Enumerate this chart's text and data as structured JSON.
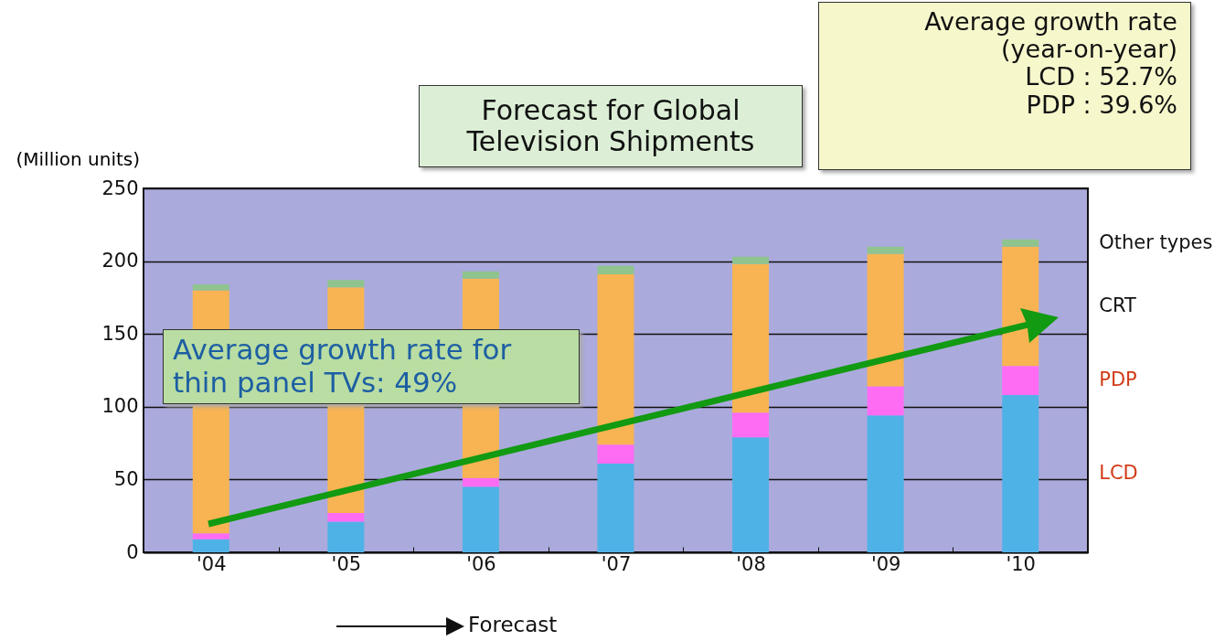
{
  "chart_data": {
    "type": "bar",
    "title": "Forecast for Global Television Shipments",
    "ylabel": "(Million units)",
    "categories": [
      "'04",
      "'05",
      "'06",
      "'07",
      "'08",
      "'09",
      "'10"
    ],
    "stacked": true,
    "series": [
      {
        "name": "LCD",
        "color": "#4fb2e6",
        "values": [
          9,
          21,
          45,
          61,
          79,
          94,
          108
        ]
      },
      {
        "name": "PDP",
        "color": "#ff6cf4",
        "values": [
          4,
          6,
          6,
          13,
          17,
          20,
          20
        ]
      },
      {
        "name": "CRT",
        "color": "#f8b452",
        "values": [
          167,
          155,
          137,
          117,
          102,
          91,
          82
        ]
      },
      {
        "name": "Other types",
        "color": "#8fc48f",
        "values": [
          4,
          5,
          5,
          6,
          5,
          5,
          5
        ]
      }
    ],
    "ylim": [
      0,
      250
    ],
    "yticks": [
      0,
      50,
      100,
      150,
      200,
      250
    ],
    "grid": "y",
    "legend": false,
    "annotations": [
      "Average growth rate\n(year-on-year)\nLCD : 52.7%\nPDP : 39.6%",
      "Average growth rate for thin panel TVs: 49%",
      "Forecast"
    ]
  }
}
